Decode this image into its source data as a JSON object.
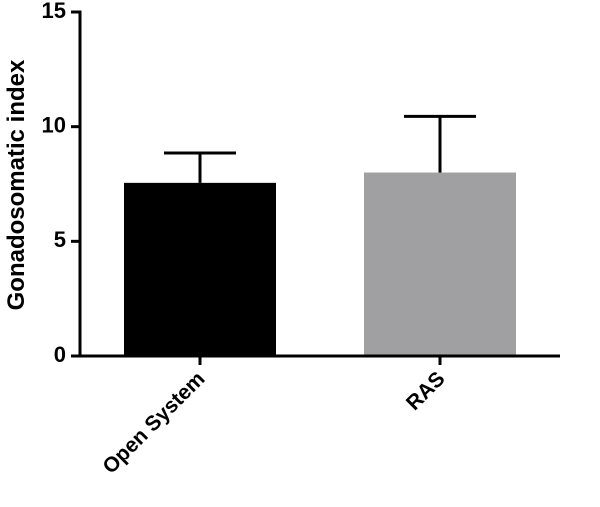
{
  "chart_data": {
    "type": "bar",
    "y_label": "Gonadosomatic index",
    "categories": [
      "Open System",
      "RAS"
    ],
    "values": [
      7.55,
      8.0
    ],
    "errors": [
      1.3,
      2.45
    ],
    "colors": [
      "#000000",
      "#a0a0a2"
    ],
    "ylim": [
      0,
      15
    ],
    "yticks": [
      0,
      5,
      10,
      15
    ],
    "grid": false
  }
}
